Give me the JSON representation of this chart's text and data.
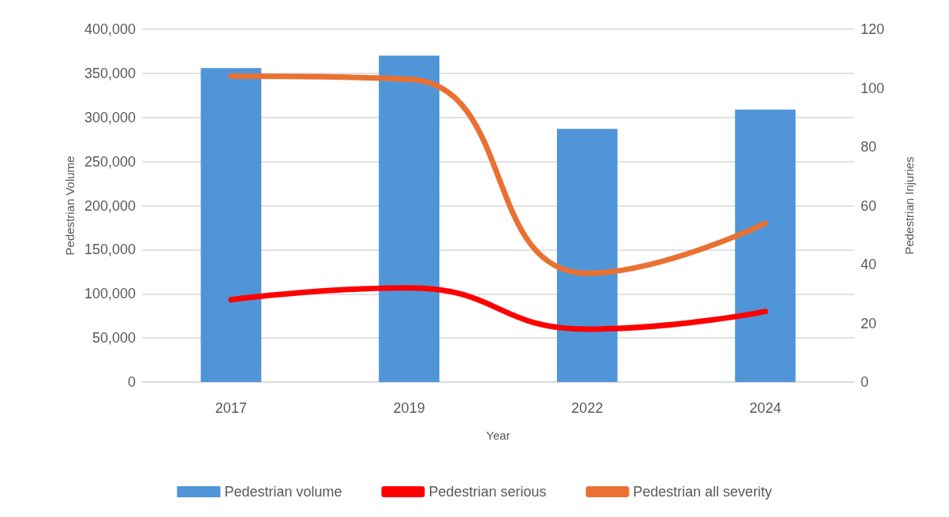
{
  "chart_data": {
    "type": "bar",
    "xlabel": "Year",
    "ylabel": "Pedestrian Volume",
    "y2label": "Pedestrian Injuries",
    "categories": [
      "2017",
      "2019",
      "2022",
      "2024"
    ],
    "series": [
      {
        "name": "Pedestrian volume",
        "color": "#4f95d8",
        "values": [
          356000,
          370000,
          287000,
          309000
        ]
      },
      {
        "name": "Pedestrian serious",
        "type": "line",
        "axis": "y2",
        "color": "#ff0000",
        "values": [
          28,
          32,
          18,
          24
        ]
      },
      {
        "name": "Pedestrian all severity",
        "type": "line",
        "axis": "y2",
        "color": "#e97132",
        "values": [
          104,
          103,
          37,
          54
        ]
      }
    ],
    "ylim": [
      0,
      400000
    ],
    "yticks": [
      0,
      {
        "value": 50000,
        "label": "50,000"
      },
      {
        "value": 100000,
        "label": "100,000"
      },
      {
        "value": 150000,
        "label": "150,000"
      },
      {
        "value": 200000,
        "label": "200,000"
      },
      {
        "value": 250000,
        "label": "250,000"
      },
      {
        "value": 300000,
        "label": "300,000"
      },
      {
        "value": 350000,
        "label": "350,000"
      },
      {
        "value": 400000,
        "label": "400,000"
      }
    ],
    "y2lim": [
      0,
      120
    ],
    "y2ticks": [
      0,
      20,
      40,
      60,
      80,
      100,
      120
    ],
    "grid": "y",
    "legend": "bottom",
    "marker": "none",
    "line_style": "solid"
  }
}
